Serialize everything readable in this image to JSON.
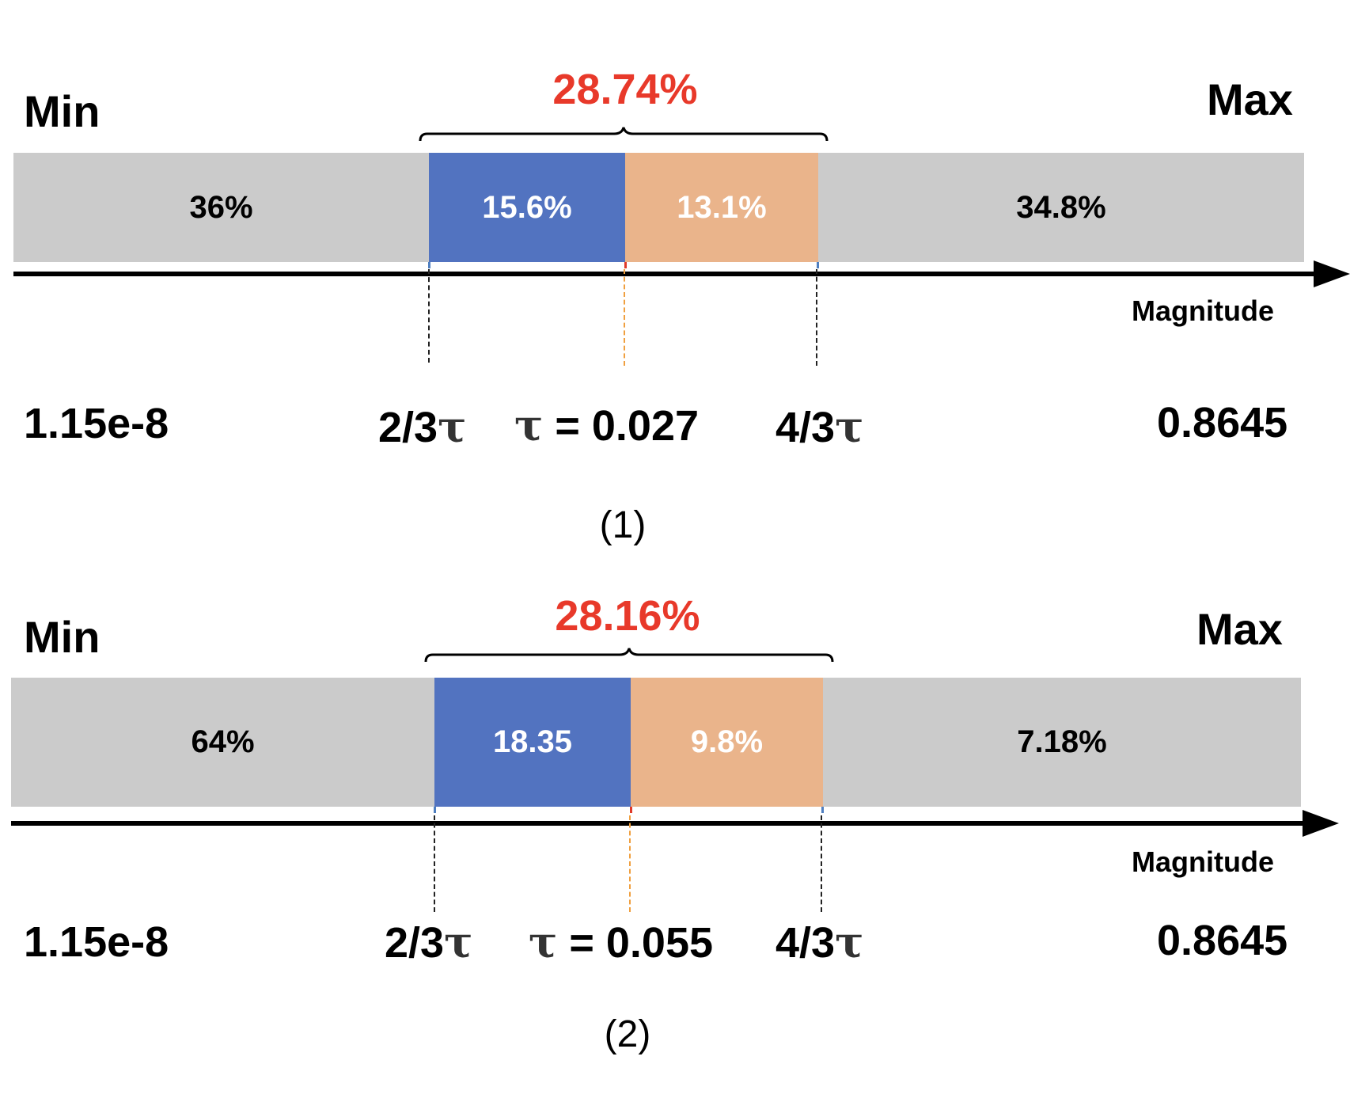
{
  "panels": [
    {
      "min_label": "Min",
      "max_label": "Max",
      "highlight_total": "28.74%",
      "segments": [
        {
          "label": "36%",
          "color": "#cbcbcb"
        },
        {
          "label": "15.6%",
          "color": "#5273c0"
        },
        {
          "label": "13.1%",
          "color": "#eab48b"
        },
        {
          "label": "34.8%",
          "color": "#cbcbcb"
        }
      ],
      "axis_label": "Magnitude",
      "thresholds": {
        "min_value": "1.15e-8",
        "lower": "2/3",
        "tau_prefix": " = 0.027",
        "upper": "4/3",
        "max_value": "0.8645"
      },
      "tau_symbol": "τ",
      "caption": "(1)"
    },
    {
      "min_label": "Min",
      "max_label": "Max",
      "highlight_total": "28.16%",
      "segments": [
        {
          "label": "64%",
          "color": "#cbcbcb"
        },
        {
          "label": "18.35",
          "color": "#5273c0"
        },
        {
          "label": "9.8%",
          "color": "#eab48b"
        },
        {
          "label": "7.18%",
          "color": "#cbcbcb"
        }
      ],
      "axis_label": "Magnitude",
      "thresholds": {
        "min_value": "1.15e-8",
        "lower": "2/3",
        "tau_prefix": " = 0.055",
        "upper": "4/3",
        "max_value": "0.8645"
      },
      "tau_symbol": "τ",
      "caption": "(2)"
    }
  ],
  "colors": {
    "highlight_text": "#e8392a",
    "gray_segment": "#cbcbcb",
    "blue_segment": "#5273c0",
    "orange_segment": "#eab48b"
  }
}
